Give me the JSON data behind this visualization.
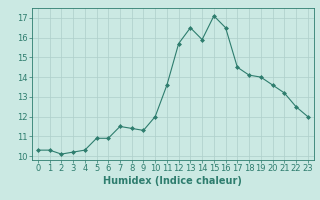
{
  "x": [
    0,
    1,
    2,
    3,
    4,
    5,
    6,
    7,
    8,
    9,
    10,
    11,
    12,
    13,
    14,
    15,
    16,
    17,
    18,
    19,
    20,
    21,
    22,
    23
  ],
  "y": [
    10.3,
    10.3,
    10.1,
    10.2,
    10.3,
    10.9,
    10.9,
    11.5,
    11.4,
    11.3,
    12.0,
    13.6,
    15.7,
    16.5,
    15.9,
    17.1,
    16.5,
    14.5,
    14.1,
    14.0,
    13.6,
    13.2,
    12.5,
    12.0
  ],
  "line_color": "#2e7d6e",
  "marker": "D",
  "marker_size": 2.0,
  "bg_color": "#cbe9e3",
  "grid_color": "#aecfca",
  "xlabel": "Humidex (Indice chaleur)",
  "xlim": [
    -0.5,
    23.5
  ],
  "ylim": [
    9.8,
    17.5
  ],
  "yticks": [
    10,
    11,
    12,
    13,
    14,
    15,
    16,
    17
  ],
  "xticks": [
    0,
    1,
    2,
    3,
    4,
    5,
    6,
    7,
    8,
    9,
    10,
    11,
    12,
    13,
    14,
    15,
    16,
    17,
    18,
    19,
    20,
    21,
    22,
    23
  ],
  "xlabel_fontsize": 7.0,
  "tick_fontsize": 6.0
}
